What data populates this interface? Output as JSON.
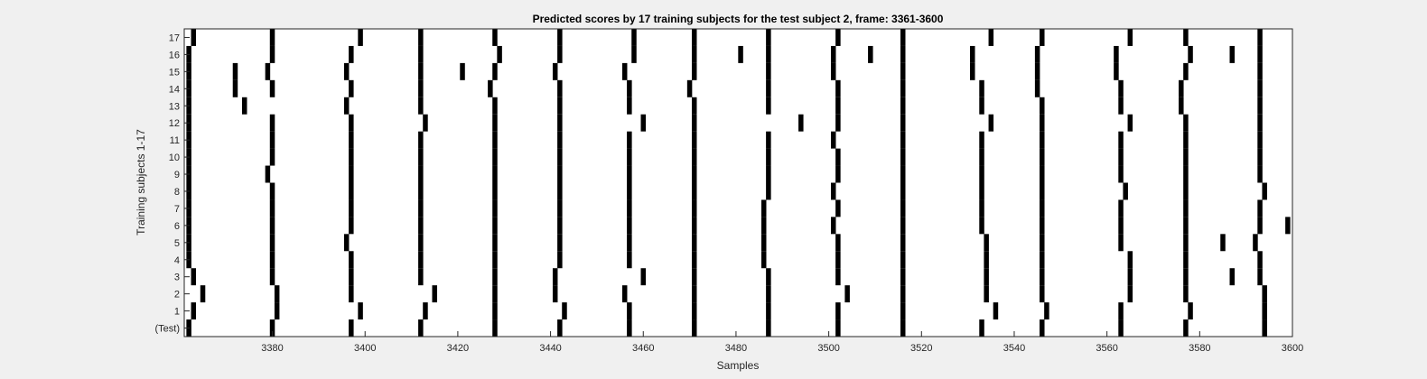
{
  "chart_data": {
    "type": "heatmap",
    "title": "Predicted scores by 17 training subjects for the test subject 2, frame: 3361-3600",
    "xlabel": "Samples",
    "ylabel": "Training subjects 1-17",
    "xlim": [
      3361,
      3600
    ],
    "xticks": [
      3380,
      3400,
      3420,
      3440,
      3460,
      3480,
      3500,
      3520,
      3540,
      3560,
      3580,
      3600
    ],
    "row_labels": [
      "(Test)",
      "1",
      "2",
      "3",
      "4",
      "5",
      "6",
      "7",
      "8",
      "9",
      "10",
      "11",
      "12",
      "13",
      "14",
      "15",
      "16",
      "17"
    ],
    "colormap": {
      "background": "#ffffff",
      "mark": "#000000"
    },
    "rows": [
      {
        "label": "(Test)",
        "marks": [
          3362,
          3380,
          3397,
          3412,
          3428,
          3442,
          3457,
          3471,
          3487,
          3502,
          3516,
          3533,
          3546,
          3563,
          3577,
          3594
        ]
      },
      {
        "label": "1",
        "marks": [
          3363,
          3381,
          3399,
          3413,
          3428,
          3443,
          3457,
          3471,
          3487,
          3502,
          3516,
          3536,
          3547,
          3563,
          3578,
          3594
        ]
      },
      {
        "label": "2",
        "marks": [
          3365,
          3381,
          3397,
          3415,
          3428,
          3441,
          3456,
          3471,
          3487,
          3504,
          3516,
          3534,
          3546,
          3565,
          3577,
          3594
        ]
      },
      {
        "label": "3",
        "marks": [
          3363,
          3380,
          3397,
          3412,
          3428,
          3441,
          3460,
          3471,
          3487,
          3502,
          3516,
          3534,
          3546,
          3565,
          3577,
          3587,
          3593
        ]
      },
      {
        "label": "4",
        "marks": [
          3362,
          3380,
          3397,
          3412,
          3428,
          3442,
          3457,
          3471,
          3486,
          3502,
          3516,
          3534,
          3546,
          3565,
          3577,
          3593
        ]
      },
      {
        "label": "5",
        "marks": [
          3362,
          3380,
          3396,
          3412,
          3428,
          3442,
          3457,
          3471,
          3486,
          3502,
          3516,
          3534,
          3546,
          3563,
          3577,
          3585,
          3592
        ]
      },
      {
        "label": "6",
        "marks": [
          3362,
          3380,
          3397,
          3412,
          3428,
          3442,
          3457,
          3471,
          3486,
          3501,
          3516,
          3533,
          3546,
          3563,
          3577,
          3593,
          3599
        ]
      },
      {
        "label": "7",
        "marks": [
          3362,
          3380,
          3397,
          3412,
          3428,
          3442,
          3457,
          3471,
          3486,
          3502,
          3516,
          3533,
          3546,
          3563,
          3577,
          3593
        ]
      },
      {
        "label": "8",
        "marks": [
          3362,
          3380,
          3397,
          3412,
          3428,
          3442,
          3457,
          3471,
          3487,
          3501,
          3516,
          3533,
          3546,
          3564,
          3577,
          3594
        ]
      },
      {
        "label": "9",
        "marks": [
          3362,
          3379,
          3397,
          3412,
          3428,
          3442,
          3457,
          3471,
          3487,
          3502,
          3516,
          3533,
          3546,
          3563,
          3577,
          3593
        ]
      },
      {
        "label": "10",
        "marks": [
          3362,
          3380,
          3397,
          3412,
          3428,
          3442,
          3457,
          3471,
          3487,
          3502,
          3516,
          3533,
          3546,
          3563,
          3577,
          3593
        ]
      },
      {
        "label": "11",
        "marks": [
          3362,
          3380,
          3397,
          3412,
          3428,
          3442,
          3457,
          3471,
          3487,
          3501,
          3516,
          3533,
          3546,
          3563,
          3577,
          3593
        ]
      },
      {
        "label": "12",
        "marks": [
          3362,
          3380,
          3397,
          3413,
          3428,
          3442,
          3460,
          3471,
          3494,
          3502,
          3516,
          3535,
          3546,
          3565,
          3577,
          3593
        ]
      },
      {
        "label": "13",
        "marks": [
          3362,
          3374,
          3396,
          3412,
          3428,
          3442,
          3457,
          3471,
          3487,
          3502,
          3516,
          3533,
          3546,
          3563,
          3576,
          3593
        ]
      },
      {
        "label": "14",
        "marks": [
          3362,
          3372,
          3380,
          3397,
          3412,
          3427,
          3442,
          3457,
          3470,
          3487,
          3502,
          3516,
          3533,
          3545,
          3563,
          3576,
          3593
        ]
      },
      {
        "label": "15",
        "marks": [
          3362,
          3372,
          3379,
          3396,
          3412,
          3421,
          3428,
          3441,
          3456,
          3471,
          3487,
          3501,
          3516,
          3531,
          3545,
          3562,
          3577,
          3593
        ]
      },
      {
        "label": "16",
        "marks": [
          3362,
          3380,
          3397,
          3412,
          3429,
          3442,
          3458,
          3471,
          3481,
          3487,
          3501,
          3509,
          3516,
          3531,
          3545,
          3562,
          3578,
          3587,
          3593
        ]
      },
      {
        "label": "17",
        "marks": [
          3363,
          3380,
          3399,
          3412,
          3428,
          3442,
          3458,
          3471,
          3487,
          3502,
          3516,
          3535,
          3546,
          3565,
          3577,
          3593
        ]
      }
    ]
  }
}
